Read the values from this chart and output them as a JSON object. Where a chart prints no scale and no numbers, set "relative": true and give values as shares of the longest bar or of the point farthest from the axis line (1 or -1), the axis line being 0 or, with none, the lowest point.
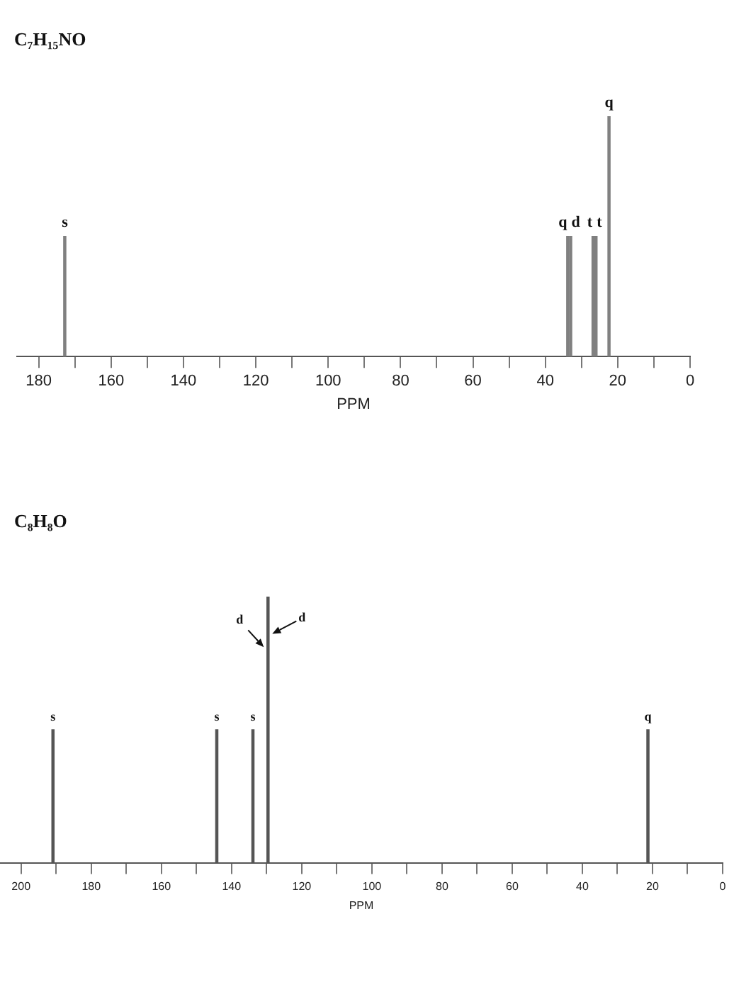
{
  "chart_data": [
    {
      "type": "bar",
      "title": "C₇H₁₅NO",
      "xlabel": "PPM",
      "relative": true,
      "color": "#808080",
      "x": [
        172.8,
        33.8,
        33.0,
        26.8,
        26.0,
        22.4
      ],
      "values": [
        0.5,
        0.5,
        0.5,
        0.5,
        0.5,
        1
      ],
      "annotations": [
        {
          "text": "s",
          "x": 172.8,
          "y": 0.5
        },
        {
          "text": "q",
          "x": 33.8,
          "y": 0.5
        },
        {
          "text": "d",
          "x": 33.0,
          "y": 0.5
        },
        {
          "text": "t",
          "x": 26.8,
          "y": 0.5
        },
        {
          "text": "t",
          "x": 26.0,
          "y": 0.5
        },
        {
          "text": "q",
          "x": 22.4,
          "y": 1
        }
      ],
      "xlim": [
        186,
        0
      ],
      "xticks": [
        180,
        {
          "value": 170,
          "label": null
        },
        160,
        {
          "value": 150,
          "label": null
        },
        140,
        {
          "value": 130,
          "label": null
        },
        120,
        {
          "value": 110,
          "label": null
        },
        100,
        {
          "value": 90,
          "label": null
        },
        80,
        {
          "value": 70,
          "label": null
        },
        60,
        {
          "value": 50,
          "label": null
        },
        40,
        {
          "value": 30,
          "label": null
        },
        20,
        {
          "value": 10,
          "label": null
        },
        0
      ]
    },
    {
      "type": "bar",
      "title": "C₈H₈O",
      "xlabel": "PPM",
      "relative": true,
      "color": "#555555",
      "x": [
        190.9,
        144.2,
        133.9,
        129.6,
        21.3
      ],
      "values": [
        0.5,
        0.5,
        0.5,
        1,
        0.5
      ],
      "annotations": [
        {
          "text": "s",
          "x": 190.9,
          "y": 0.5
        },
        {
          "text": "s",
          "x": 144.2,
          "y": 0.5
        },
        {
          "text": "s",
          "x": 133.9,
          "y": 0.5
        },
        {
          "text": "d",
          "x": 129.6,
          "y": 0.81
        },
        {
          "text": "d",
          "x": 129.6,
          "y": 0.86
        },
        {
          "text": "q",
          "x": 21.3,
          "y": 0.5
        }
      ],
      "xlim": [
        206,
        0
      ],
      "xticks": [
        200,
        {
          "value": 190,
          "label": null
        },
        180,
        {
          "value": 170,
          "label": null
        },
        160,
        {
          "value": 150,
          "label": null
        },
        140,
        {
          "value": 130,
          "label": null
        },
        120,
        {
          "value": 110,
          "label": null
        },
        100,
        {
          "value": 90,
          "label": null
        },
        80,
        {
          "value": 70,
          "label": null
        },
        60,
        {
          "value": 50,
          "label": null
        },
        40,
        {
          "value": 30,
          "label": null
        },
        20,
        {
          "value": 10,
          "label": null
        },
        0
      ]
    }
  ]
}
